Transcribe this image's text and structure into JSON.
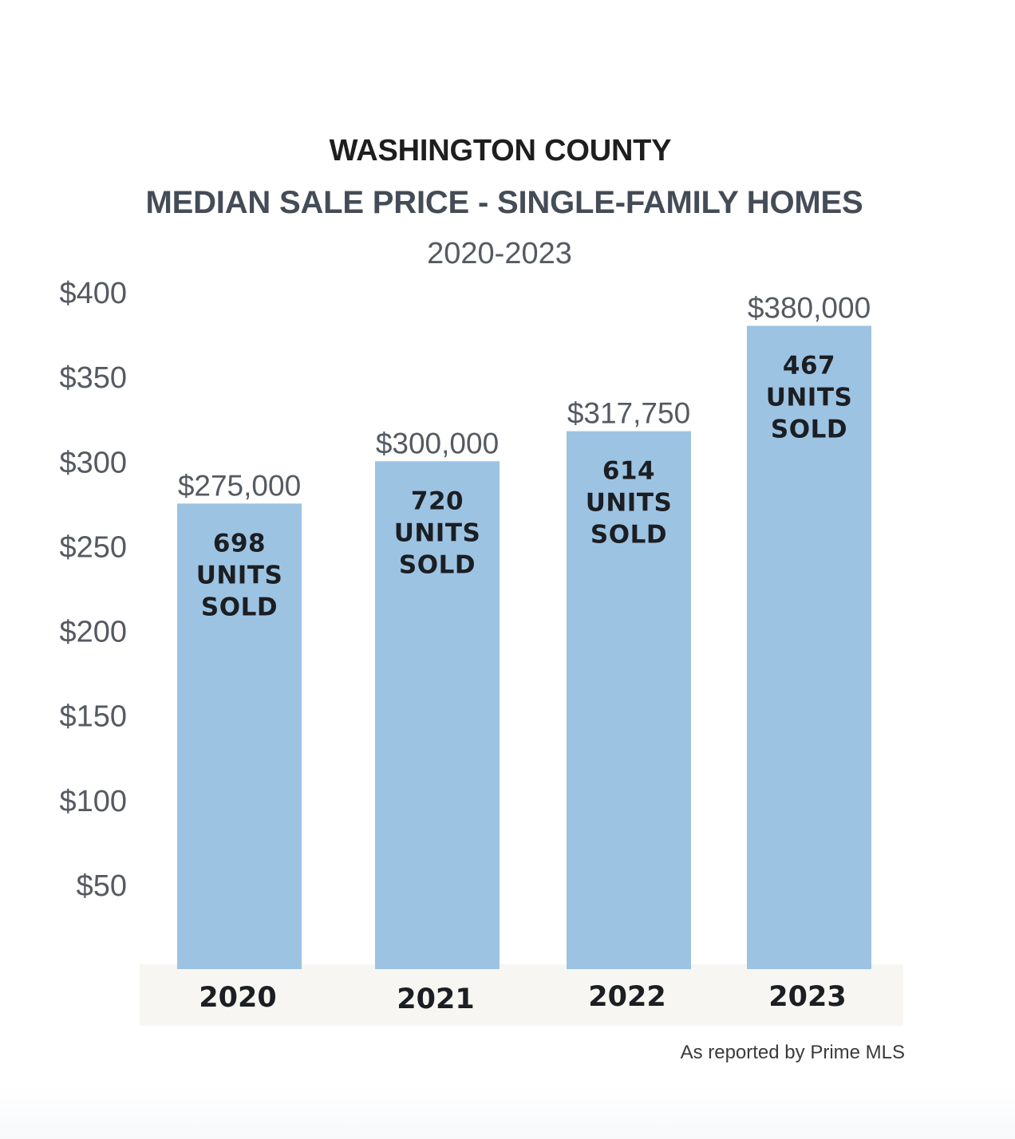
{
  "chart_data": {
    "type": "bar",
    "title": "WASHINGTON COUNTY",
    "subtitle": "MEDIAN SALE PRICE - SINGLE-FAMILY HOMES",
    "period": "2020-2023",
    "categories": [
      "2020",
      "2021",
      "2022",
      "2023"
    ],
    "values": [
      275000,
      300000,
      317750,
      380000
    ],
    "value_labels": [
      "$275,000",
      "$300,000",
      "$317,750",
      "$380,000"
    ],
    "units_sold": [
      "698",
      "720",
      "614",
      "467"
    ],
    "units_label_line1": "UNITS",
    "units_label_line2": "SOLD",
    "y_ticks": [
      50,
      100,
      150,
      200,
      250,
      300,
      350,
      400
    ],
    "y_tick_labels": [
      "$50",
      "$100",
      "$150",
      "$200",
      "$250",
      "$300",
      "$350",
      "$400"
    ],
    "ylim": [
      0,
      400000
    ],
    "grid": false,
    "bar_color": "#9dc3e3",
    "category_band_color": "#f7f6f2"
  },
  "source_note": "As reported by Prime MLS"
}
